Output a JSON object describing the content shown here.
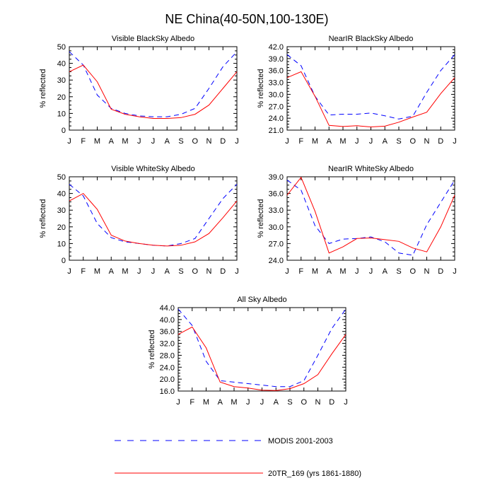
{
  "figure": {
    "title": "NE China(40-50N,100-130E)",
    "legend": [
      {
        "label": "MODIS 2001-2003",
        "color": "#0000ff",
        "style": "dashed"
      },
      {
        "label": "20TR_169 (yrs 1861-1880)",
        "color": "#ff0000",
        "style": "solid"
      }
    ]
  },
  "chart_data": [
    {
      "type": "line",
      "title": "Visible BlackSky Albedo",
      "ylabel": "% reflected",
      "xlabel": "",
      "categories": [
        "J",
        "F",
        "M",
        "A",
        "M",
        "J",
        "J",
        "A",
        "S",
        "O",
        "N",
        "D",
        "J"
      ],
      "ylim": [
        0,
        50
      ],
      "yticks": [
        "0",
        "10",
        "20",
        "30",
        "40",
        "50"
      ],
      "series": [
        {
          "name": "MODIS 2001-2003",
          "color": "#0000ff",
          "dash": true,
          "values": [
            47,
            39,
            21,
            13,
            10,
            8.5,
            8,
            8,
            9.5,
            13,
            25,
            38,
            47
          ]
        },
        {
          "name": "20TR_169 (yrs 1861-1880)",
          "color": "#ff0000",
          "dash": false,
          "values": [
            35,
            39,
            29,
            12.5,
            9.5,
            8,
            7,
            7,
            7.5,
            9.5,
            15,
            25,
            35
          ]
        }
      ]
    },
    {
      "type": "line",
      "title": "NearIR BlackSky Albedo",
      "ylabel": "% reflected",
      "xlabel": "",
      "categories": [
        "J",
        "F",
        "M",
        "A",
        "M",
        "J",
        "J",
        "A",
        "S",
        "O",
        "N",
        "D",
        "J"
      ],
      "ylim": [
        21,
        42
      ],
      "yticks": [
        "21.0",
        "24.0",
        "27.0",
        "30.0",
        "33.0",
        "36.0",
        "39.0",
        "42.0"
      ],
      "series": [
        {
          "name": "MODIS 2001-2003",
          "color": "#0000ff",
          "dash": true,
          "values": [
            40,
            37.2,
            29.5,
            24.8,
            25,
            25,
            25.3,
            24.6,
            23.8,
            24.5,
            30.5,
            36,
            40
          ]
        },
        {
          "name": "20TR_169 (yrs 1861-1880)",
          "color": "#ff0000",
          "dash": false,
          "values": [
            34.2,
            35.7,
            29.5,
            22.2,
            21.9,
            22.1,
            21.8,
            22,
            23,
            24.3,
            25.5,
            30.2,
            34.2
          ]
        }
      ]
    },
    {
      "type": "line",
      "title": "Visible WhiteSky Albedo",
      "ylabel": "% reflected",
      "xlabel": "",
      "categories": [
        "J",
        "F",
        "M",
        "A",
        "M",
        "J",
        "J",
        "A",
        "S",
        "O",
        "N",
        "D",
        "J"
      ],
      "ylim": [
        0,
        50
      ],
      "yticks": [
        "0",
        "10",
        "20",
        "30",
        "40",
        "50"
      ],
      "series": [
        {
          "name": "MODIS 2001-2003",
          "color": "#0000ff",
          "dash": true,
          "values": [
            45.5,
            38.5,
            22,
            13.5,
            11,
            10,
            9,
            8.5,
            10,
            13,
            25,
            37,
            45.5
          ]
        },
        {
          "name": "20TR_169 (yrs 1861-1880)",
          "color": "#ff0000",
          "dash": false,
          "values": [
            35.5,
            40,
            30.5,
            15,
            11.5,
            10,
            9,
            8.5,
            9,
            11,
            16,
            25.5,
            35.5
          ]
        }
      ]
    },
    {
      "type": "line",
      "title": "NearIR WhiteSky Albedo",
      "ylabel": "% reflected",
      "xlabel": "",
      "categories": [
        "J",
        "F",
        "M",
        "A",
        "M",
        "J",
        "J",
        "A",
        "S",
        "O",
        "N",
        "D",
        "J"
      ],
      "ylim": [
        24,
        39
      ],
      "yticks": [
        "24.0",
        "27.0",
        "30.0",
        "33.0",
        "36.0",
        "39.0"
      ],
      "series": [
        {
          "name": "MODIS 2001-2003",
          "color": "#0000ff",
          "dash": true,
          "values": [
            38.4,
            36.6,
            30.2,
            27,
            27.8,
            27.9,
            28.2,
            27.3,
            25.3,
            24.9,
            30.4,
            34.4,
            38.4
          ]
        },
        {
          "name": "20TR_169 (yrs 1861-1880)",
          "color": "#ff0000",
          "dash": false,
          "values": [
            35.7,
            38.9,
            32.8,
            25.3,
            26.4,
            27.9,
            28,
            27.7,
            27.4,
            26.2,
            25.5,
            30,
            35.7
          ]
        }
      ]
    },
    {
      "type": "line",
      "title": "All Sky Albedo",
      "ylabel": "% reflected",
      "xlabel": "",
      "categories": [
        "J",
        "F",
        "M",
        "A",
        "M",
        "J",
        "J",
        "A",
        "S",
        "O",
        "N",
        "D",
        "J"
      ],
      "ylim": [
        16,
        44
      ],
      "yticks": [
        "16.0",
        "20.0",
        "24.0",
        "28.0",
        "32.0",
        "36.0",
        "40.0",
        "44.0"
      ],
      "series": [
        {
          "name": "MODIS 2001-2003",
          "color": "#0000ff",
          "dash": true,
          "values": [
            43.5,
            38,
            26,
            19.5,
            19,
            18.5,
            18,
            17.5,
            17.5,
            19.5,
            28,
            37,
            43.5
          ]
        },
        {
          "name": "20TR_169 (yrs 1861-1880)",
          "color": "#ff0000",
          "dash": false,
          "values": [
            35,
            37.5,
            30.5,
            19,
            17.5,
            17,
            16.3,
            16.2,
            16.8,
            18.5,
            21.5,
            28.5,
            35
          ]
        }
      ]
    }
  ]
}
